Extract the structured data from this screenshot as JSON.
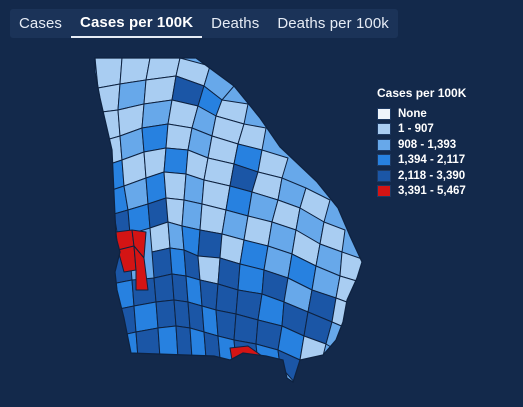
{
  "tabs": [
    {
      "label": "Cases",
      "active": false
    },
    {
      "label": "Cases per 100K",
      "active": true
    },
    {
      "label": "Deaths",
      "active": false
    },
    {
      "label": "Deaths per 100k",
      "active": false
    }
  ],
  "legend": {
    "title": "Cases per 100K",
    "items": [
      {
        "label": "None",
        "color": "#eef4fb"
      },
      {
        "label": "1 - 907",
        "color": "#a9cdf2"
      },
      {
        "label": "908 - 1,393",
        "color": "#67a8ea"
      },
      {
        "label": "1,394 - 2,117",
        "color": "#2781e0"
      },
      {
        "label": "2,118 - 3,390",
        "color": "#1b56a6"
      },
      {
        "label": "3,391 - 5,467",
        "color": "#d41414"
      }
    ]
  },
  "map": {
    "region": "Georgia",
    "border_color": "#0e2240"
  }
}
